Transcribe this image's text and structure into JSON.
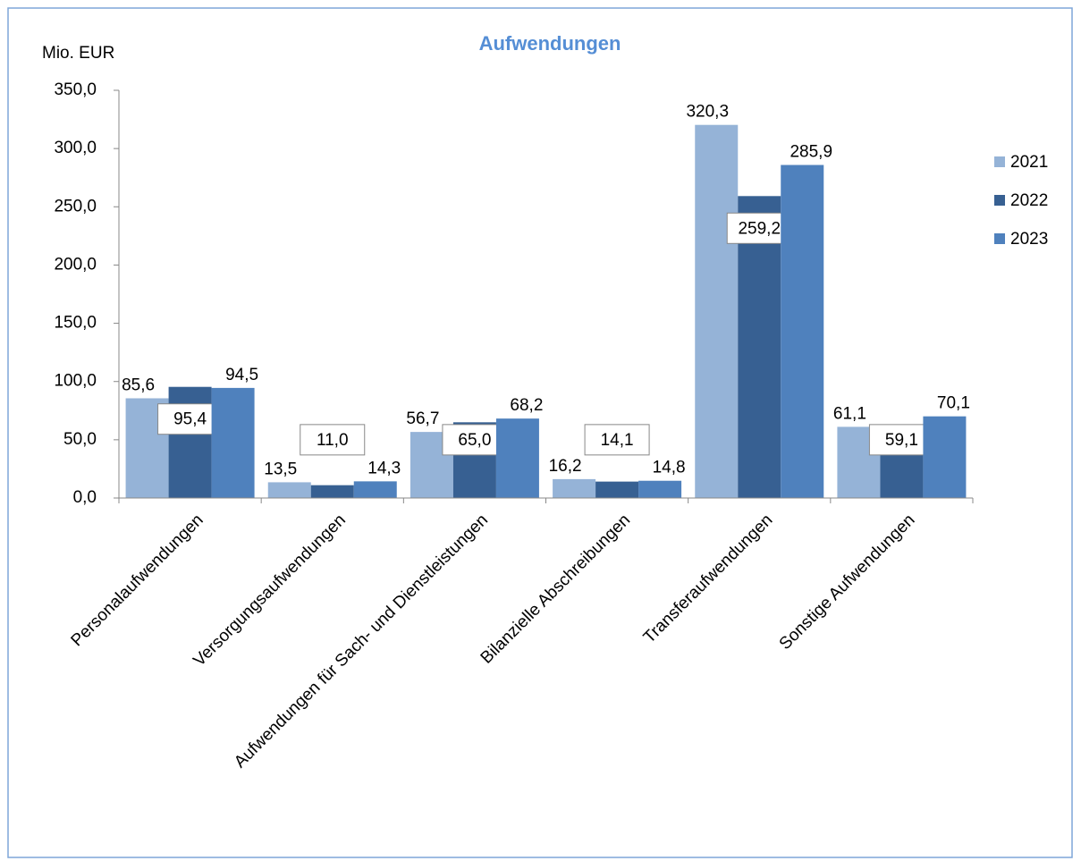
{
  "chart_data": {
    "type": "bar",
    "title": "Aufwendungen",
    "y_axis_label": "Mio. EUR",
    "categories": [
      "Personalaufwendungen",
      "Versorgungsaufwendungen",
      "Aufwendungen für Sach- und Dienstleistungen",
      "Bilanzielle Abschreibungen",
      "Transferaufwendungen",
      "Sonstige Aufwendungen"
    ],
    "series": [
      {
        "name": "2021",
        "color": "#95b3d7",
        "values": [
          85.6,
          13.5,
          56.7,
          16.2,
          320.3,
          61.1
        ],
        "value_labels": [
          "85,6",
          "13,5",
          "56,7",
          "16,2",
          "320,3",
          "61,1"
        ]
      },
      {
        "name": "2022",
        "color": "#376092",
        "values": [
          95.4,
          11.0,
          65.0,
          14.1,
          259.2,
          59.1
        ],
        "value_labels": [
          "95,4",
          "11,0",
          "65,0",
          "14,1",
          "259,2",
          "59,1"
        ]
      },
      {
        "name": "2023",
        "color": "#4f81bd",
        "values": [
          94.5,
          14.3,
          68.2,
          14.8,
          285.9,
          70.1
        ],
        "value_labels": [
          "94,5",
          "14,3",
          "68,2",
          "14,8",
          "285,9",
          "70,1"
        ]
      }
    ],
    "ylim": [
      0,
      350
    ],
    "yticks": [
      {
        "value": 0,
        "label": "0,0"
      },
      {
        "value": 50,
        "label": "50,0"
      },
      {
        "value": 100,
        "label": "100,0"
      },
      {
        "value": 150,
        "label": "150,0"
      },
      {
        "value": 200,
        "label": "200,0"
      },
      {
        "value": 250,
        "label": "250,0"
      },
      {
        "value": 300,
        "label": "300,0"
      },
      {
        "value": 350,
        "label": "350,0"
      }
    ],
    "legend": "right"
  }
}
